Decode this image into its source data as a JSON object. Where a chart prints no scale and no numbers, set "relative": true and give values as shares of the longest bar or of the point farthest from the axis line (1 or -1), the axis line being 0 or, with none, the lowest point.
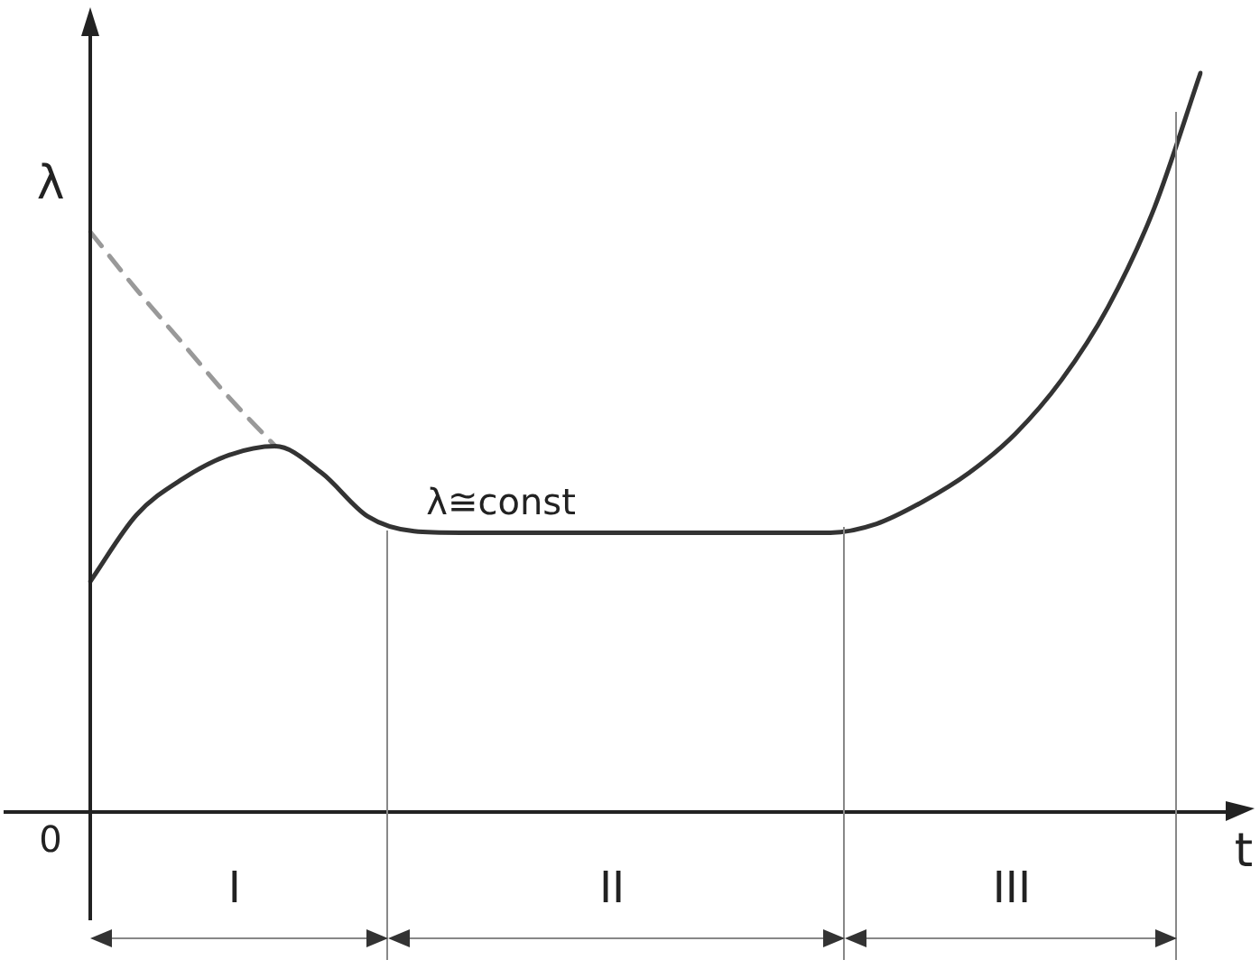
{
  "chart_data": {
    "type": "line",
    "relative": true,
    "xlabel": "t",
    "ylabel": "λ",
    "categories": [
      null,
      null,
      null,
      null,
      null,
      null,
      null,
      null,
      null,
      null,
      null,
      null,
      null,
      null,
      null,
      null,
      null,
      null,
      null,
      null,
      null,
      null,
      null,
      null,
      null
    ],
    "series": [
      {
        "color": "#333333",
        "values": [
          0.312,
          0.402,
          0.451,
          0.483,
          0.495,
          0.459,
          0.4,
          0.38,
          0.378,
          0.378,
          0.378,
          0.378,
          0.378,
          0.378,
          0.378,
          0.378,
          0.378,
          0.39,
          0.42,
          0.459,
          0.512,
          0.585,
          0.683,
          0.817,
          1.0
        ]
      },
      {
        "color": "#999999",
        "line_style": "dashed",
        "values": [
          0.785,
          0.707,
          0.634,
          0.561,
          0.495,
          null,
          null,
          null,
          null,
          null,
          null,
          null,
          null,
          null,
          null,
          null,
          null,
          null,
          null,
          null,
          null,
          null,
          null,
          null,
          null
        ]
      }
    ],
    "annotations": [
      "0",
      "λ≅const",
      "I",
      "II",
      "III"
    ]
  }
}
